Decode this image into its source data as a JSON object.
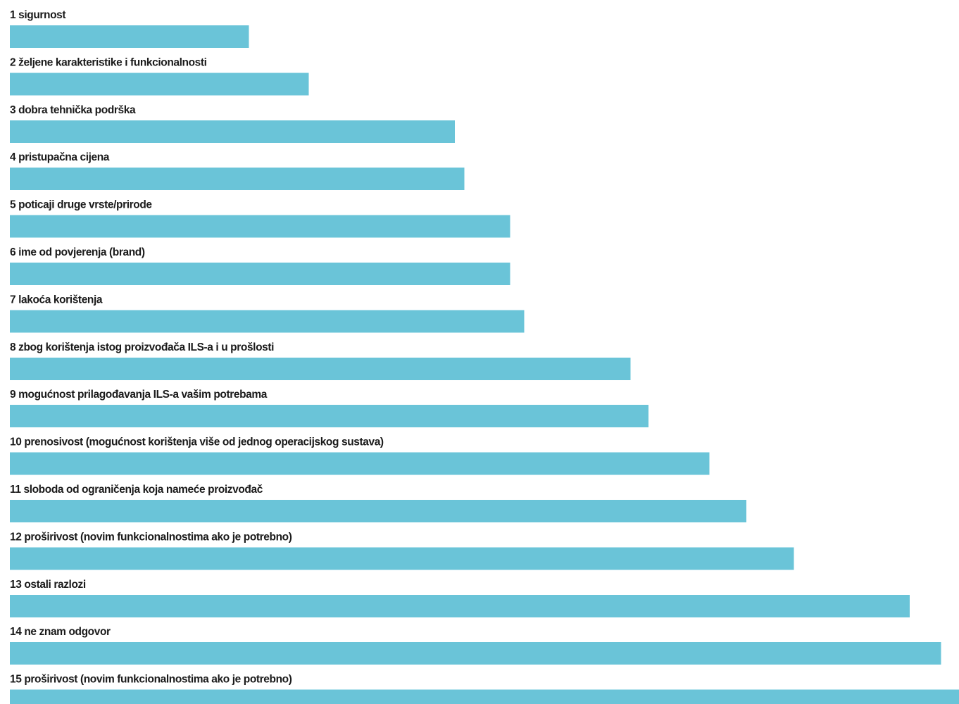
{
  "chart_data": {
    "type": "bar",
    "orientation": "horizontal",
    "categories": [
      "1 sigurnost",
      "2 željene karakteristike i funkcionalnosti",
      "3 dobra tehnička podrška",
      "4 pristupačna cijena",
      "5 poticaji druge vrste/prirode",
      "6 ime od povjerenja (brand)",
      "7 lakoća korištenja",
      "8 zbog korištenja istog proizvođača ILS-a i u prošlosti",
      "9 mogućnost prilagođavanja ILS-a vašim potrebama",
      "10 prenosivost (mogućnost korištenja više od jednog operacijskog sustava)",
      "11 sloboda od ograničenja koja nameće proizvođač",
      "12 proširivost (novim funkcionalnostima ako je potrebno)",
      "13 ostali razlozi",
      "14 ne znam odgovor",
      "15 proširivost (novim funkcionalnostima ako je potrebno)"
    ],
    "values": [
      25.2,
      31.5,
      46.9,
      47.9,
      52.7,
      52.7,
      54.2,
      65.4,
      67.3,
      73.7,
      77.6,
      82.6,
      94.8,
      98.1,
      100
    ],
    "xlim": [
      0,
      100
    ],
    "bar_color": "#6ac4d8",
    "label_color": "#1a1a1a",
    "title": "",
    "xlabel": "",
    "ylabel": "",
    "grid": false,
    "legend": "none"
  }
}
